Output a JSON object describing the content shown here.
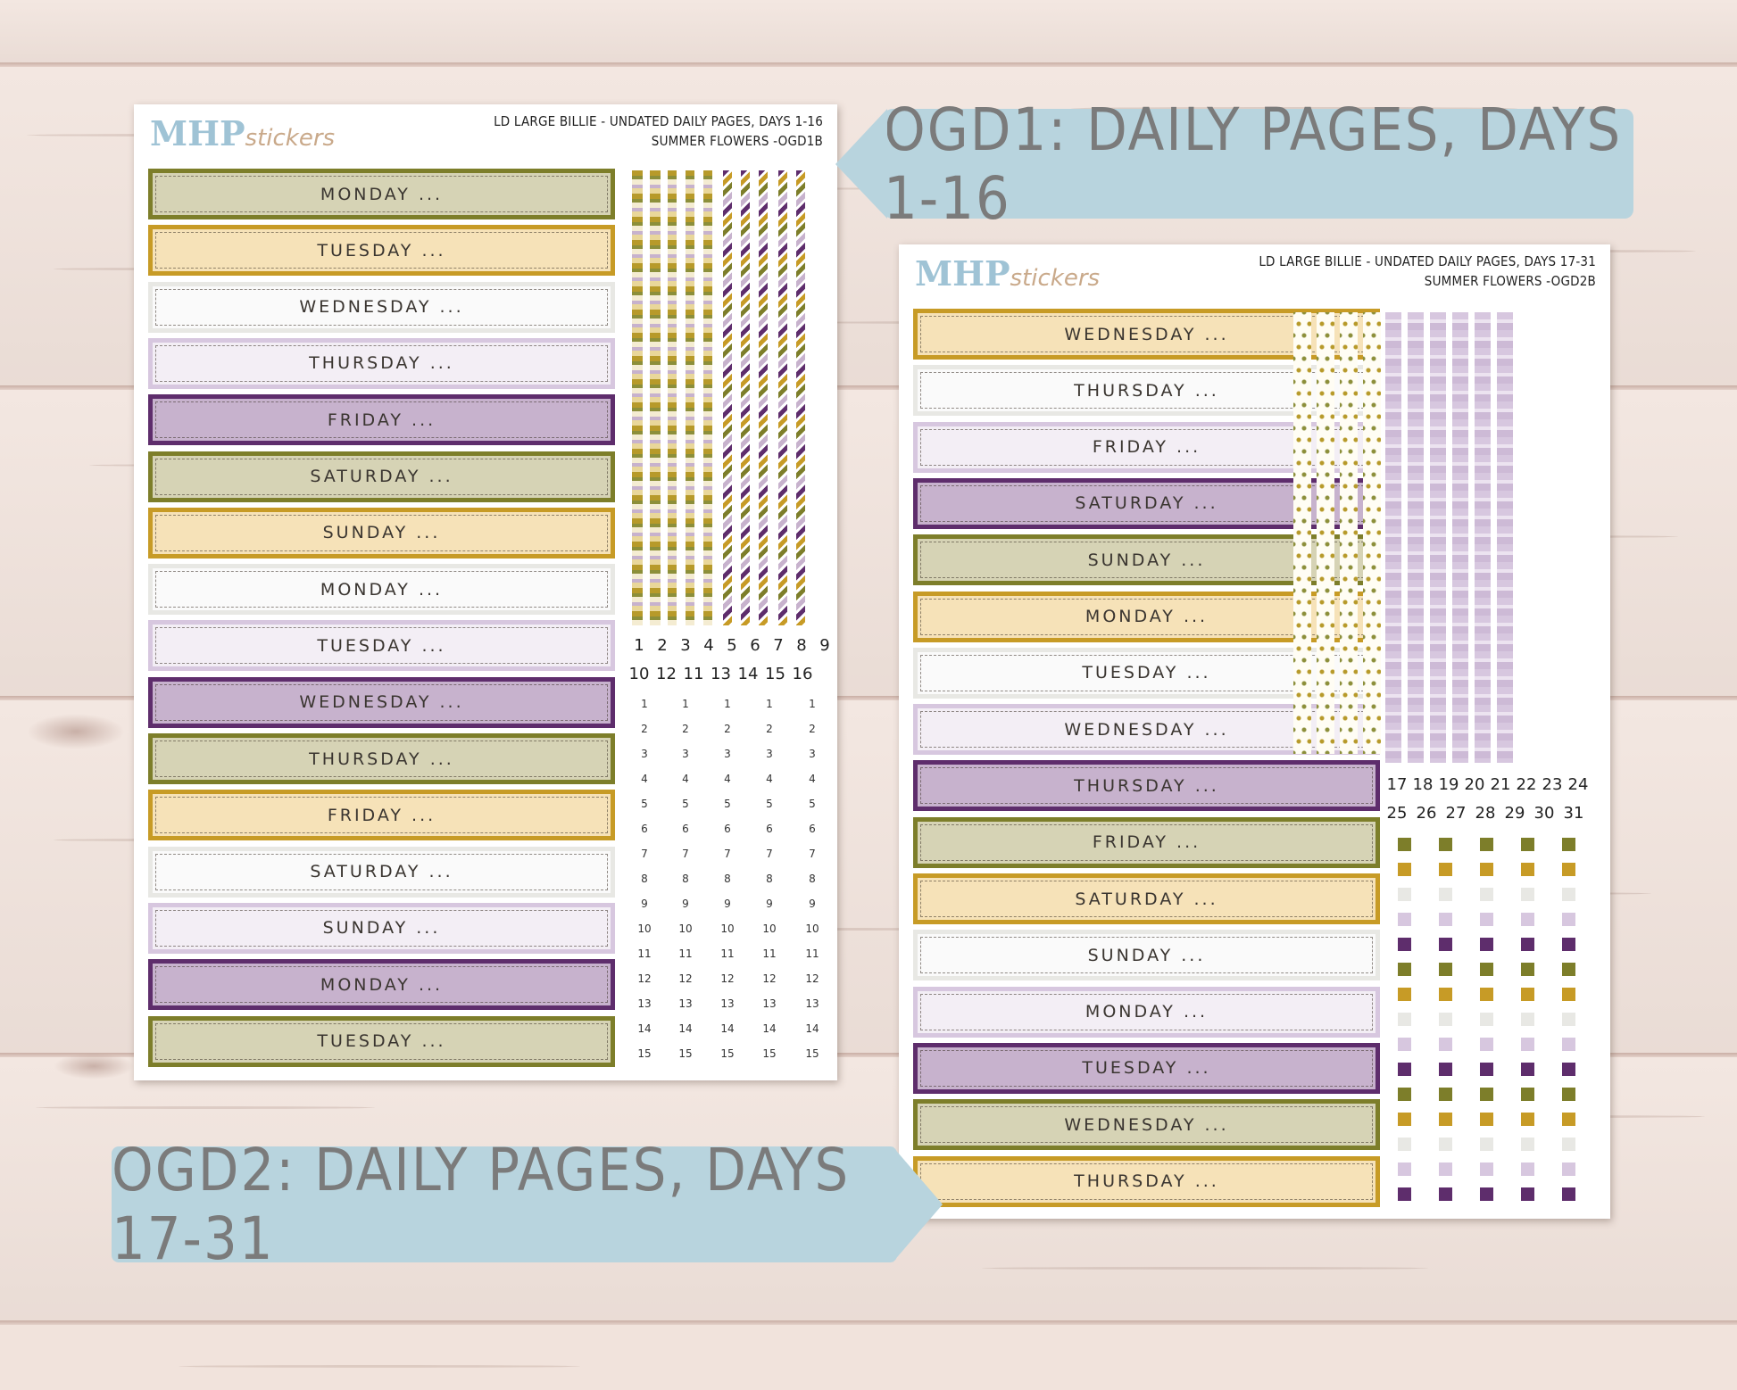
{
  "banners": {
    "top": "OGD1: DAILY PAGES, DAYS 1-16",
    "bottom": "OGD2: DAILY PAGES, DAYS 17-31"
  },
  "colors": {
    "olive": "#7d7e2a",
    "olive_fill": "#d6d3b5",
    "mustard": "#c79b26",
    "mustard_fill": "#f6e2b8",
    "grey": "#e8e8e4",
    "grey_fill": "#fafafa",
    "lilac": "#d7c7df",
    "lilac_fill": "#f3eef5",
    "plum": "#5e2d6c",
    "plum_fill": "#c7b2cd",
    "banner": "#b8d4de"
  },
  "sheet1": {
    "logo_main": "MHP",
    "logo_script": "stickers",
    "title_line1": "LD LARGE BILLIE  - UNDATED DAILY PAGES, DAYS 1-16",
    "title_line2": "SUMMER FLOWERS -OGD1B",
    "bands": [
      {
        "label": "MONDAY ...",
        "style": "olive"
      },
      {
        "label": "TUESDAY ...",
        "style": "mustard"
      },
      {
        "label": "WEDNESDAY ...",
        "style": "grey"
      },
      {
        "label": "THURSDAY ...",
        "style": "lilac"
      },
      {
        "label": "FRIDAY ...",
        "style": "plum"
      },
      {
        "label": "SATURDAY ...",
        "style": "olive"
      },
      {
        "label": "SUNDAY ...",
        "style": "mustard"
      },
      {
        "label": "MONDAY ...",
        "style": "grey"
      },
      {
        "label": "TUESDAY ...",
        "style": "lilac"
      },
      {
        "label": "WEDNESDAY ...",
        "style": "plum"
      },
      {
        "label": "THURSDAY ...",
        "style": "olive"
      },
      {
        "label": "FRIDAY ...",
        "style": "mustard"
      },
      {
        "label": "SATURDAY ...",
        "style": "grey"
      },
      {
        "label": "SUNDAY ...",
        "style": "lilac"
      },
      {
        "label": "MONDAY ...",
        "style": "plum"
      },
      {
        "label": "TUESDAY ...",
        "style": "olive"
      }
    ],
    "numbers_row1": [
      "1",
      "2",
      "3",
      "4",
      "5",
      "6",
      "7",
      "8",
      "9"
    ],
    "numbers_row2": [
      "10",
      "12",
      "11",
      "13",
      "14",
      "15",
      "16"
    ],
    "tiny_numbers": [
      "1",
      "2",
      "3",
      "4",
      "5",
      "6",
      "7",
      "8",
      "9",
      "10",
      "11",
      "12",
      "13",
      "14",
      "15"
    ]
  },
  "sheet2": {
    "logo_main": "MHP",
    "logo_script": "stickers",
    "title_line1": "LD LARGE BILLIE - UNDATED DAILY PAGES, DAYS 17-31",
    "title_line2": "SUMMER FLOWERS -OGD2B",
    "bands": [
      {
        "label": "WEDNESDAY ...",
        "style": "mustard"
      },
      {
        "label": "THURSDAY ...",
        "style": "grey"
      },
      {
        "label": "FRIDAY ...",
        "style": "lilac"
      },
      {
        "label": "SATURDAY ...",
        "style": "plum"
      },
      {
        "label": "SUNDAY ...",
        "style": "olive"
      },
      {
        "label": "MONDAY ...",
        "style": "mustard"
      },
      {
        "label": "TUESDAY ...",
        "style": "grey"
      },
      {
        "label": "WEDNESDAY ...",
        "style": "lilac"
      },
      {
        "label": "THURSDAY ...",
        "style": "plum"
      },
      {
        "label": "FRIDAY ...",
        "style": "olive"
      },
      {
        "label": "SATURDAY ...",
        "style": "mustard"
      },
      {
        "label": "SUNDAY ...",
        "style": "grey"
      },
      {
        "label": "MONDAY ...",
        "style": "lilac"
      },
      {
        "label": "TUESDAY ...",
        "style": "plum"
      },
      {
        "label": "WEDNESDAY ...",
        "style": "olive"
      },
      {
        "label": "THURSDAY ...",
        "style": "mustard"
      }
    ],
    "numbers_row1": [
      "17",
      "18",
      "19",
      "20",
      "21",
      "22",
      "23",
      "24"
    ],
    "numbers_row2": [
      "25",
      "26",
      "27",
      "28",
      "29",
      "30",
      "31"
    ]
  }
}
